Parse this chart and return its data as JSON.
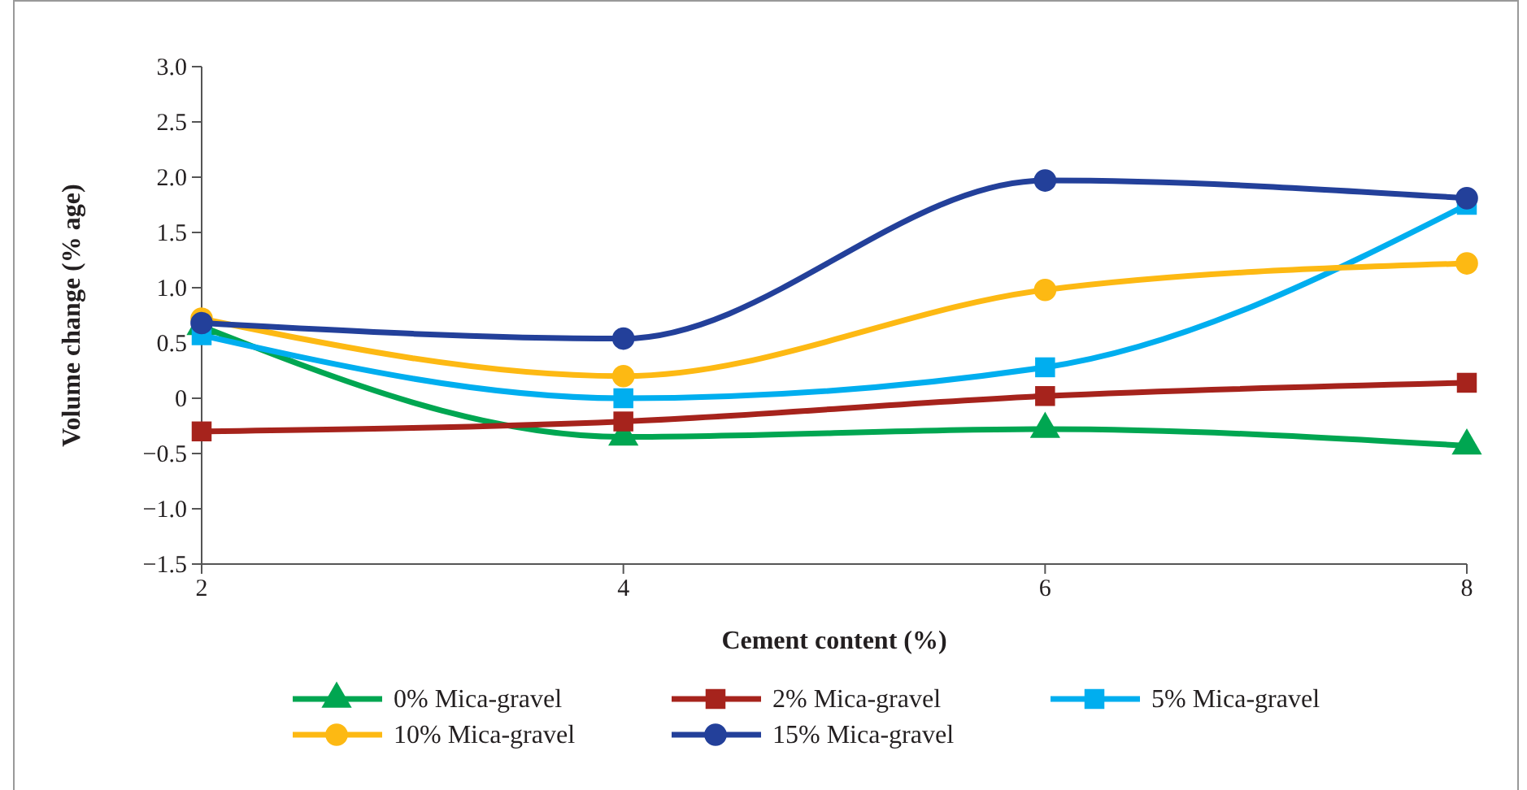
{
  "chart_data": {
    "type": "line",
    "xlabel": "Cement content (%)",
    "ylabel": "Volume change (% age)",
    "x": [
      2,
      4,
      6,
      8
    ],
    "xlim": [
      2,
      8
    ],
    "xticks": [
      2,
      4,
      6,
      8
    ],
    "ylim": [
      -1.5,
      3.0
    ],
    "yticks": [
      {
        "value": -1.5,
        "label": "−1.5"
      },
      {
        "value": -1,
        "label": "−1.0"
      },
      {
        "value": -0.5,
        "label": "−0.5"
      },
      {
        "value": 0,
        "label": "0"
      },
      {
        "value": 0.5,
        "label": "0.5"
      },
      {
        "value": 1,
        "label": "1.0"
      },
      {
        "value": 1.5,
        "label": "1.5"
      },
      {
        "value": 2,
        "label": "2.0"
      },
      {
        "value": 2.5,
        "label": "2.5"
      },
      {
        "value": 3,
        "label": "3.0"
      }
    ],
    "legend": "bottom",
    "grid": false,
    "series": [
      {
        "name": "0% Mica-gravel",
        "color": "#00a651",
        "marker": "triangle",
        "values": [
          0.65,
          -0.35,
          -0.28,
          -0.43
        ]
      },
      {
        "name": "2% Mica-gravel",
        "color": "#a6231c",
        "marker": "square",
        "values": [
          -0.3,
          -0.21,
          0.02,
          0.14
        ]
      },
      {
        "name": "5% Mica-gravel",
        "color": "#00aeef",
        "marker": "square",
        "values": [
          0.57,
          0.0,
          0.28,
          1.75
        ]
      },
      {
        "name": "10% Mica-gravel",
        "color": "#fdb913",
        "marker": "circle",
        "values": [
          0.72,
          0.2,
          0.98,
          1.22
        ]
      },
      {
        "name": "15% Mica-gravel",
        "color": "#23409a",
        "marker": "circle",
        "values": [
          0.68,
          0.54,
          1.97,
          1.81
        ]
      }
    ]
  }
}
